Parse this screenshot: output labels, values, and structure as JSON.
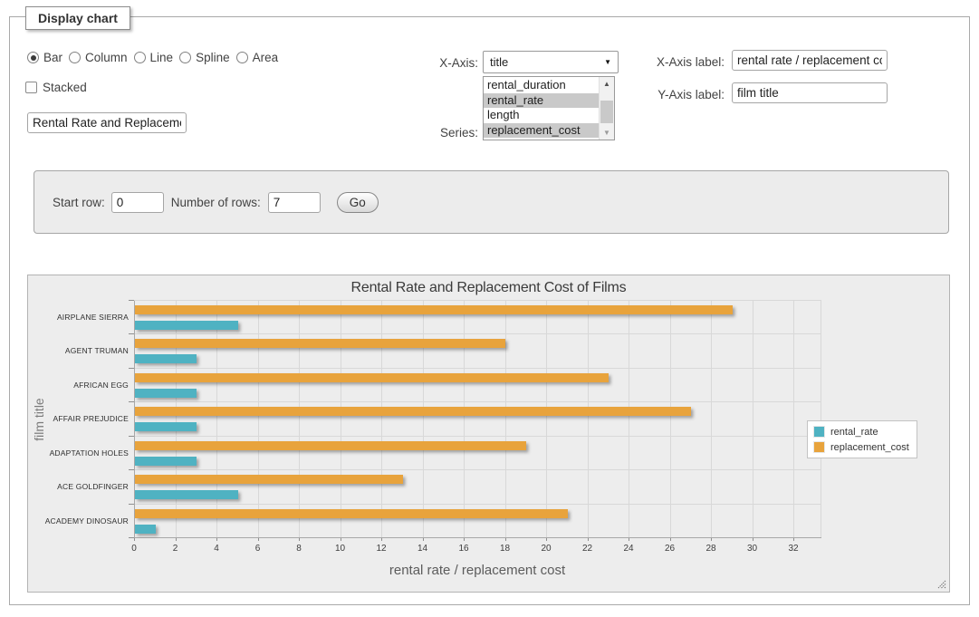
{
  "fieldset": {
    "legend": "Display chart"
  },
  "chart_types": {
    "options": [
      "Bar",
      "Column",
      "Line",
      "Spline",
      "Area"
    ],
    "selected": "Bar"
  },
  "stacked": {
    "label": "Stacked",
    "checked": false
  },
  "title_input": {
    "value": "Rental Rate and Replacemer"
  },
  "x_axis": {
    "label": "X-Axis:",
    "selected_value": "title"
  },
  "series_select": {
    "label": "Series:",
    "options": [
      {
        "label": "rental_duration",
        "selected": false
      },
      {
        "label": "rental_rate",
        "selected": true
      },
      {
        "label": "length",
        "selected": false
      },
      {
        "label": "replacement_cost",
        "selected": true
      }
    ]
  },
  "x_axis_label_field": {
    "label": "X-Axis label:",
    "value": "rental rate / replacement cost"
  },
  "y_axis_label_field": {
    "label": "Y-Axis label:",
    "value": "film title"
  },
  "row_controls": {
    "start_row_label": "Start row:",
    "start_row_value": "0",
    "num_rows_label": "Number of rows:",
    "num_rows_value": "7",
    "go_label": "Go"
  },
  "chart_data": {
    "type": "bar",
    "title": "Rental Rate and Replacement Cost of Films",
    "xlabel": "rental rate / replacement cost",
    "ylabel": "film title",
    "categories": [
      "AIRPLANE SIERRA",
      "AGENT TRUMAN",
      "AFRICAN EGG",
      "AFFAIR PREJUDICE",
      "ADAPTATION HOLES",
      "ACE GOLDFINGER",
      "ACADEMY DINOSAUR"
    ],
    "series": [
      {
        "name": "rental_rate",
        "color": "#4FB2C2",
        "values": [
          4.99,
          2.99,
          2.99,
          2.99,
          2.99,
          4.99,
          0.99
        ]
      },
      {
        "name": "replacement_cost",
        "color": "#E8A33C",
        "values": [
          28.99,
          17.99,
          22.99,
          26.99,
          18.99,
          12.99,
          20.99
        ]
      }
    ],
    "xlim": [
      0,
      32
    ],
    "x_tick_step": 2,
    "grid": true,
    "legend_position": "right",
    "bar_order_within_group": [
      "replacement_cost",
      "rental_rate"
    ],
    "orientation": "horizontal"
  }
}
